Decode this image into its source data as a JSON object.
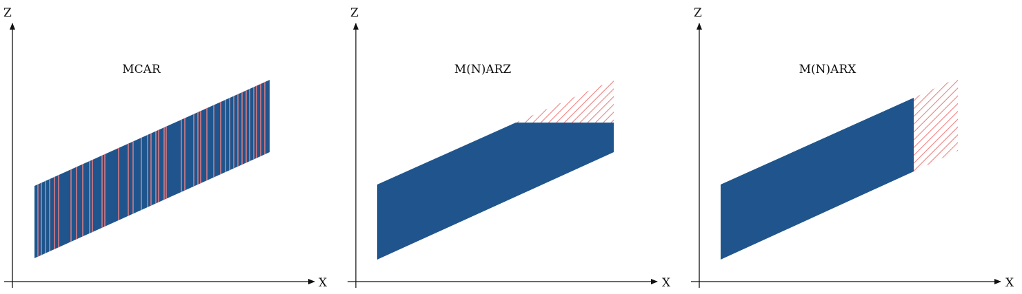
{
  "colors": {
    "observed": "#1f558c",
    "missing": "#f08080",
    "axis": "#111111"
  },
  "panels": [
    {
      "id": "mcar",
      "title": "MCAR",
      "x_axis_label": "X",
      "y_axis_label": "Z",
      "missing_pattern": "random-vertical-stripes"
    },
    {
      "id": "mnarz",
      "title": "M(N)ARZ",
      "x_axis_label": "X",
      "y_axis_label": "Z",
      "missing_pattern": "hatched-region-above-z-threshold"
    },
    {
      "id": "mnarx",
      "title": "M(N)ARX",
      "x_axis_label": "X",
      "y_axis_label": "Z",
      "missing_pattern": "hatched-region-beyond-x-threshold"
    }
  ]
}
